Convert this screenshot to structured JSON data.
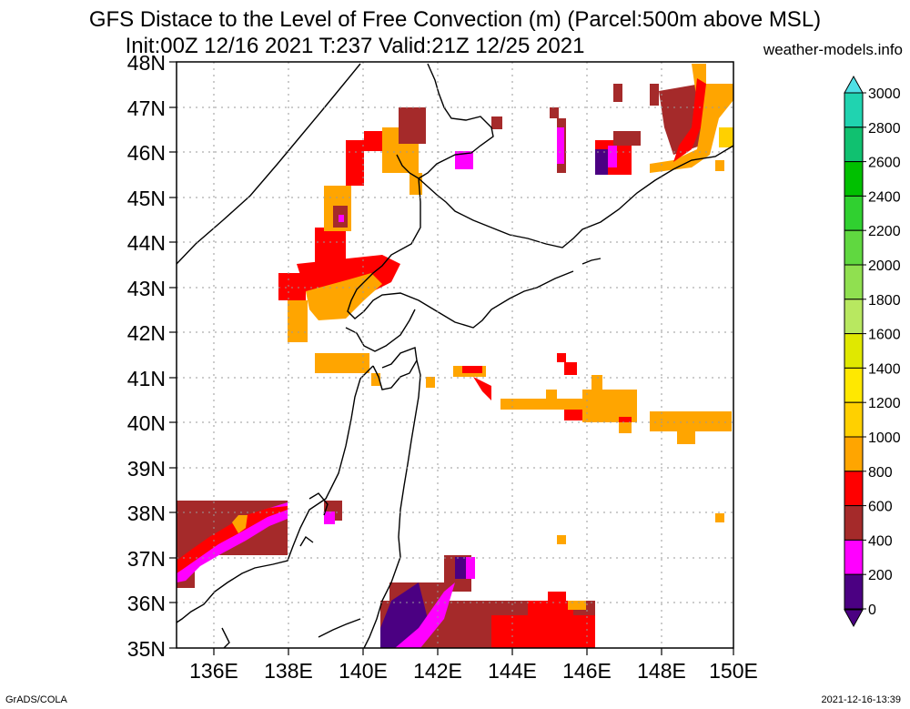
{
  "title": {
    "line1": "GFS Distace to the Level of Free Convection (m) (Parcel:500m above MSL)",
    "line2": "Init:00Z 12/16 2021 T:237 Valid:21Z 12/25 2021",
    "site": "weather-models.info"
  },
  "axes": {
    "lat_labels": [
      "48N",
      "47N",
      "46N",
      "45N",
      "44N",
      "43N",
      "42N",
      "41N",
      "40N",
      "39N",
      "38N",
      "37N",
      "36N",
      "35N"
    ],
    "lon_labels": [
      "136E",
      "138E",
      "140E",
      "142E",
      "144E",
      "146E",
      "148E",
      "150E"
    ]
  },
  "colorbar": {
    "labels": [
      "3000",
      "2800",
      "2600",
      "2400",
      "2200",
      "2000",
      "1800",
      "1600",
      "1400",
      "1200",
      "1000",
      "800",
      "600",
      "400",
      "200",
      "0"
    ],
    "colors": [
      "#4fe0e6",
      "#20d3b0",
      "#10c170",
      "#00c000",
      "#30d030",
      "#60d840",
      "#90e050",
      "#b8e860",
      "#e0e800",
      "#ffe800",
      "#ffd000",
      "#ffa500",
      "#ff0000",
      "#a52a2a",
      "#ff00ff",
      "#4b0082"
    ]
  },
  "footer": {
    "left": "GrADS/COLA",
    "right": "2021-12-16-13:39"
  }
}
